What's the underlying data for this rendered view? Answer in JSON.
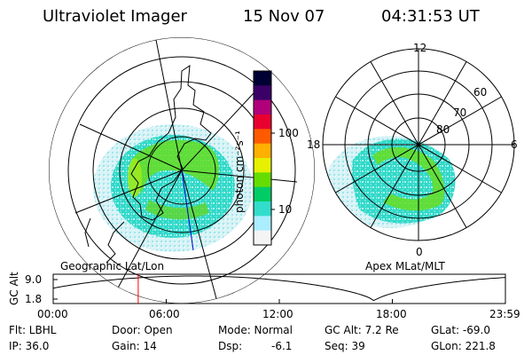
{
  "header": {
    "instrument": "Ultraviolet Imager",
    "date": "15 Nov 07",
    "time": "04:31:53 UT"
  },
  "colorbar": {
    "label": "photon cm⁻²s⁻¹",
    "ticks": [
      "100",
      "10"
    ],
    "scale": "log",
    "colors": [
      "#000033",
      "#3a0066",
      "#b0007a",
      "#e8002e",
      "#ff5a00",
      "#ffb000",
      "#e6f000",
      "#66dd00",
      "#00cc66",
      "#33ddcc",
      "#aaeeff",
      "#f4f4f4"
    ]
  },
  "polar_plot": {
    "mlt_labels": {
      "top": "12",
      "right": "6",
      "bottom": "0",
      "left": "18"
    },
    "lat_labels": [
      "60",
      "70",
      "80"
    ]
  },
  "timeline": {
    "left_title": "Geographic Lat/Lon",
    "right_title": "Apex MLat/MLT",
    "axis_label": "GC Alt",
    "y_ticks": [
      "9.0",
      "1.8"
    ],
    "x_ticks": [
      "00:00",
      "06:00",
      "12:00",
      "18:00",
      "23:59"
    ],
    "current_time_fraction": 0.188,
    "marker_color": "#ff0000"
  },
  "info": {
    "row1": {
      "flt": "Flt: LBHL",
      "door": "Door: Open",
      "mode": "Mode: Normal",
      "gcalt": "GC Alt: 7.2 Re",
      "glat": "GLat: -69.0"
    },
    "row2": {
      "ip": "IP: 36.0",
      "gain": "Gain: 14",
      "dsp_label": "Dsp:",
      "dsp_value": "-6.1",
      "seq": "Seq: 39",
      "glon": "GLon: 221.8"
    }
  }
}
